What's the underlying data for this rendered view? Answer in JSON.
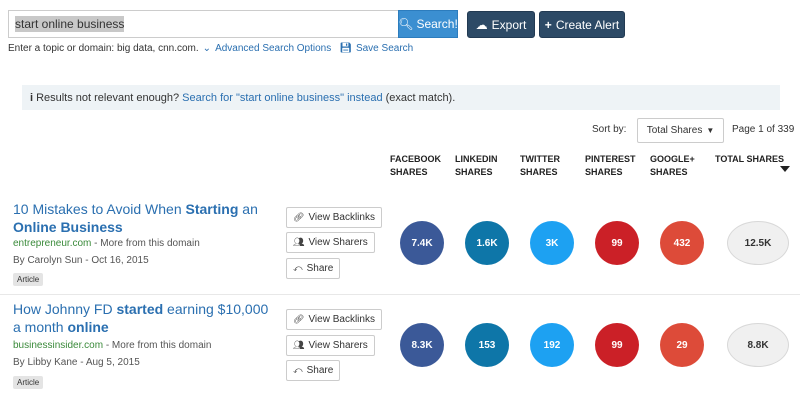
{
  "search": {
    "query": "start online business",
    "button_label": "Search!"
  },
  "toolbar": {
    "export_label": "Export",
    "alert_label": "Create Alert"
  },
  "hint": {
    "text": "Enter a topic or domain: big data, cnn.com.",
    "advanced_label": "Advanced Search Options",
    "save_label": "Save Search"
  },
  "notice": {
    "prefix": "Results not relevant enough?",
    "link": "Search for \"start online business\" instead",
    "suffix": "(exact match)."
  },
  "sort": {
    "label": "Sort by:",
    "selected": "Total Shares",
    "page_info": "Page 1 of 339"
  },
  "columns": {
    "facebook": [
      "FACEBOOK",
      "SHARES"
    ],
    "linkedin": [
      "LINKEDIN",
      "SHARES"
    ],
    "twitter": [
      "TWITTER",
      "SHARES"
    ],
    "pinterest": [
      "PINTEREST",
      "SHARES"
    ],
    "googleplus": [
      "GOOGLE+",
      "SHARES"
    ],
    "total": [
      "TOTAL SHARES",
      ""
    ]
  },
  "colors": {
    "facebook": "#3b5998",
    "linkedin": "#0e76a8",
    "twitter": "#1da1f2",
    "pinterest": "#cb2027",
    "googleplus": "#dd4b39"
  },
  "actions": {
    "backlinks": "View Backlinks",
    "sharers": "View Sharers",
    "share": "Share"
  },
  "articles": [
    {
      "title_parts": [
        "10 Mistakes to Avoid When ",
        "Starting",
        " an ",
        "Online Business"
      ],
      "domain": "entrepreneur.com",
      "more": " - More from this domain",
      "byline": "By Carolyn Sun - Oct 16, 2015",
      "tag": "Article",
      "facebook": "7.4K",
      "linkedin": "1.6K",
      "twitter": "3K",
      "pinterest": "99",
      "googleplus": "432",
      "total": "12.5K"
    },
    {
      "title_parts": [
        "How Johnny FD ",
        "started",
        " earning $10,000 a month ",
        "online"
      ],
      "domain": "businessinsider.com",
      "more": " - More from this domain",
      "byline": "By Libby Kane - Aug 5, 2015",
      "tag": "Article",
      "facebook": "8.3K",
      "linkedin": "153",
      "twitter": "192",
      "pinterest": "99",
      "googleplus": "29",
      "total": "8.8K"
    }
  ]
}
